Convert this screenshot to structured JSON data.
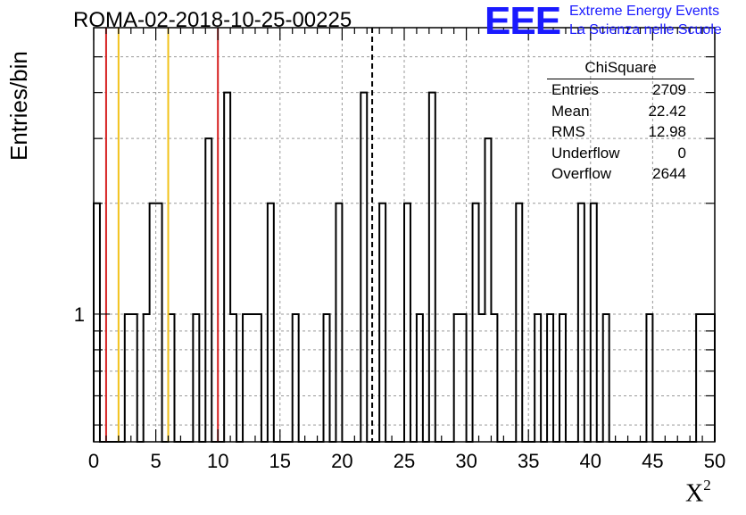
{
  "title": "ROMA-02-2018-10-25-00225",
  "logo": {
    "mark": "EEE",
    "line1": "Extreme Energy Events",
    "line2": "La Scienza nelle Scuole",
    "color": "#1a1aff"
  },
  "stats": {
    "title": "ChiSquare",
    "rows": [
      {
        "label": "Entries",
        "value": "2709"
      },
      {
        "label": "Mean",
        "value": "22.42"
      },
      {
        "label": "RMS",
        "value": "12.98"
      },
      {
        "label": "Underflow",
        "value": "0"
      },
      {
        "label": "Overflow",
        "value": "2644"
      }
    ]
  },
  "chart_data": {
    "type": "histogram",
    "title": "ROMA-02-2018-10-25-00225",
    "xlabel": "X²",
    "ylabel": "Entries/bin",
    "xlim": [
      0,
      50
    ],
    "ylim": [
      0.45,
      6
    ],
    "y_scale": "log",
    "bin_width": 0.5,
    "x_ticks": [
      0,
      5,
      10,
      15,
      20,
      25,
      30,
      35,
      40,
      45,
      50
    ],
    "y_tick_labels": [
      {
        "value": 1,
        "label": "1"
      }
    ],
    "grid": true,
    "bins": [
      {
        "x": 0,
        "value": 2
      },
      {
        "x": 2.5,
        "value": 1
      },
      {
        "x": 3,
        "value": 1
      },
      {
        "x": 4,
        "value": 1
      },
      {
        "x": 4.5,
        "value": 2
      },
      {
        "x": 5,
        "value": 2
      },
      {
        "x": 6,
        "value": 1
      },
      {
        "x": 8,
        "value": 1
      },
      {
        "x": 9,
        "value": 3
      },
      {
        "x": 10.5,
        "value": 4
      },
      {
        "x": 11,
        "value": 1
      },
      {
        "x": 12,
        "value": 1
      },
      {
        "x": 12.5,
        "value": 1
      },
      {
        "x": 13,
        "value": 1
      },
      {
        "x": 14,
        "value": 2
      },
      {
        "x": 16,
        "value": 1
      },
      {
        "x": 18.5,
        "value": 1
      },
      {
        "x": 19.5,
        "value": 2
      },
      {
        "x": 21.5,
        "value": 4
      },
      {
        "x": 23,
        "value": 2
      },
      {
        "x": 25,
        "value": 2
      },
      {
        "x": 26,
        "value": 1
      },
      {
        "x": 27,
        "value": 4
      },
      {
        "x": 29,
        "value": 1
      },
      {
        "x": 29.5,
        "value": 1
      },
      {
        "x": 30.5,
        "value": 2
      },
      {
        "x": 31,
        "value": 1
      },
      {
        "x": 31.5,
        "value": 3
      },
      {
        "x": 32,
        "value": 1
      },
      {
        "x": 34,
        "value": 2
      },
      {
        "x": 35.5,
        "value": 1
      },
      {
        "x": 36.5,
        "value": 1
      },
      {
        "x": 37.5,
        "value": 1
      },
      {
        "x": 39,
        "value": 2
      },
      {
        "x": 40,
        "value": 2
      },
      {
        "x": 41,
        "value": 1
      },
      {
        "x": 44.5,
        "value": 1
      },
      {
        "x": 48.5,
        "value": 1
      },
      {
        "x": 49,
        "value": 1
      },
      {
        "x": 49.5,
        "value": 1
      }
    ],
    "reference_lines": [
      {
        "x": 1,
        "color": "#d62020",
        "style": "solid"
      },
      {
        "x": 2,
        "color": "#f2c21b",
        "style": "solid"
      },
      {
        "x": 6,
        "color": "#f2c21b",
        "style": "solid"
      },
      {
        "x": 10,
        "color": "#d62020",
        "style": "solid"
      },
      {
        "x": 22.42,
        "color": "#000000",
        "style": "dashed"
      }
    ],
    "colors": {
      "histogram": "#000000",
      "grid": "#999999",
      "axis": "#000000"
    }
  }
}
